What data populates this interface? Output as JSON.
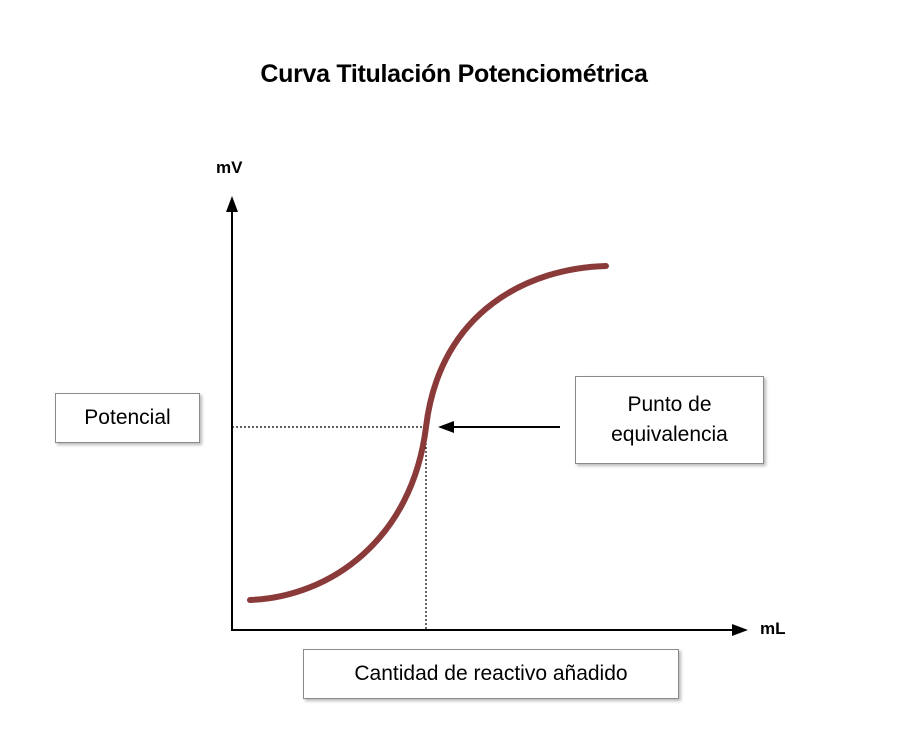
{
  "title": "Curva Titulación Potenciométrica",
  "axes": {
    "y_label": "mV",
    "x_label": "mL"
  },
  "boxes": {
    "potencial": "Potencial",
    "equivalence_point": "Punto de equivalencia",
    "reagent_amount": "Cantidad de reactivo añadido"
  },
  "colors": {
    "curve": "#8b3a3a",
    "axis": "#000000",
    "box_border": "#8a8a8a"
  },
  "icons": {
    "y_axis_arrow": "arrow-up",
    "x_axis_arrow": "arrow-right",
    "pointer_arrow": "arrow-left"
  }
}
